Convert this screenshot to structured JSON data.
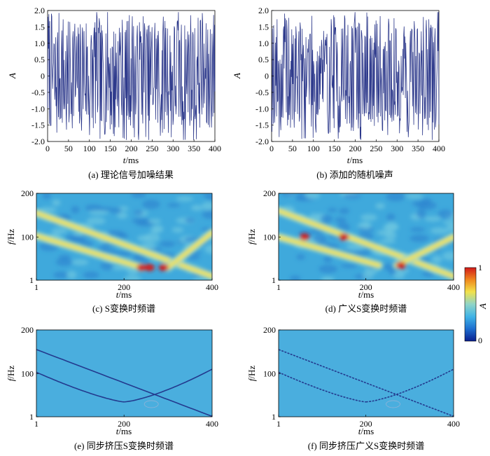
{
  "colors": {
    "signal": "#2e3a8c",
    "sst_background": "#4aaede",
    "sst_ridge": "#233a8e",
    "colormap": [
      "#0a1f8f",
      "#1e6fd0",
      "#3fb3e6",
      "#8fd4c8",
      "#f2e24a",
      "#f08a1e",
      "#d21a1a"
    ]
  },
  "chart_data": [
    {
      "id": "a",
      "type": "line",
      "caption": "(a) 理论信号加噪结果",
      "xlabel_italic": "t",
      "xlabel_unit": "/ms",
      "ylabel": "A",
      "xlim": [
        0,
        400
      ],
      "ylim": [
        -2.0,
        2.0
      ],
      "xticks": [
        "0",
        "50",
        "100",
        "150",
        "200",
        "250",
        "300",
        "350",
        "400"
      ],
      "yticks": [
        "-2.0",
        "-1.5",
        "-1.0",
        "-0.5",
        "0",
        "0.5",
        "1.0",
        "1.5",
        "2.0"
      ],
      "series": [
        {
          "seed": 7,
          "amplitude": 1.85,
          "samples": 400
        }
      ]
    },
    {
      "id": "b",
      "type": "line",
      "caption": "(b) 添加的随机噪声",
      "xlabel_italic": "t",
      "xlabel_unit": "/ms",
      "ylabel": "A",
      "xlim": [
        0,
        400
      ],
      "ylim": [
        -2.0,
        2.0
      ],
      "xticks": [
        "0",
        "50",
        "100",
        "150",
        "200",
        "250",
        "300",
        "350",
        "400"
      ],
      "yticks": [
        "-2.0",
        "-1.5",
        "-1.0",
        "-0.5",
        "0",
        "0.5",
        "1.0",
        "1.5",
        "2.0"
      ],
      "series": [
        {
          "seed": 19,
          "amplitude": 1.8,
          "samples": 400
        }
      ]
    },
    {
      "id": "c",
      "type": "heatmap",
      "caption": "(c) S变换时频谱",
      "xlabel_italic": "t",
      "xlabel_unit": "/ms",
      "ylabel_italic": "f",
      "ylabel_unit": "/Hz",
      "xlim": [
        1,
        400
      ],
      "ylim": [
        1,
        200
      ],
      "xticks": [
        "1",
        "200",
        "400"
      ],
      "yticks": [
        "1",
        "100",
        "200"
      ],
      "ridges": [
        {
          "from": [
            1,
            155
          ],
          "to": [
            400,
            10
          ]
        },
        {
          "from": [
            1,
            103
          ],
          "to": [
            240,
            30
          ]
        },
        {
          "from": [
            300,
            30
          ],
          "to": [
            400,
            110
          ]
        }
      ]
    },
    {
      "id": "d",
      "type": "heatmap",
      "caption": "(d) 广义S变换时频谱",
      "xlabel_italic": "t",
      "xlabel_unit": "/ms",
      "ylabel_italic": "f",
      "ylabel_unit": "/Hz",
      "xlim": [
        1,
        400
      ],
      "ylim": [
        1,
        200
      ],
      "xticks": [
        "1",
        "200",
        "400"
      ],
      "yticks": [
        "1",
        "100",
        "200"
      ],
      "ridges": [
        {
          "from": [
            1,
            160
          ],
          "to": [
            400,
            10
          ]
        },
        {
          "from": [
            1,
            100
          ],
          "to": [
            230,
            35
          ]
        },
        {
          "from": [
            270,
            35
          ],
          "to": [
            400,
            100
          ]
        }
      ]
    },
    {
      "id": "e",
      "type": "heatmap",
      "caption": "(e) 同步挤压S变换时频谱",
      "xlabel_italic": "t",
      "xlabel_unit": "/ms",
      "ylabel_italic": "f",
      "ylabel_unit": "/Hz",
      "xlim": [
        1,
        400
      ],
      "ylim": [
        1,
        200
      ],
      "xticks": [
        "1",
        "200",
        "400"
      ],
      "yticks": [
        "1",
        "100",
        "200"
      ],
      "ridges": [
        {
          "from": [
            1,
            155
          ],
          "to": [
            400,
            2
          ]
        },
        {
          "from": [
            1,
            103
          ],
          "to": [
            200,
            35
          ]
        },
        {
          "from": [
            200,
            35
          ],
          "to": [
            400,
            110
          ]
        }
      ]
    },
    {
      "id": "f",
      "type": "heatmap",
      "caption": "(f) 同步挤压广义S变换时频谱",
      "xlabel_italic": "t",
      "xlabel_unit": "/ms",
      "ylabel_italic": "f",
      "ylabel_unit": "/Hz",
      "xlim": [
        1,
        400
      ],
      "ylim": [
        1,
        200
      ],
      "xticks": [
        "1",
        "200",
        "400"
      ],
      "yticks": [
        "1",
        "100",
        "200"
      ],
      "ridges": [
        {
          "from": [
            1,
            155
          ],
          "to": [
            400,
            2
          ]
        },
        {
          "from": [
            1,
            103
          ],
          "to": [
            200,
            35
          ]
        },
        {
          "from": [
            200,
            35
          ],
          "to": [
            400,
            110
          ]
        }
      ]
    }
  ],
  "colorbar": {
    "label": "A",
    "max_label": "1",
    "min_label": "0",
    "range": [
      0,
      1
    ]
  }
}
